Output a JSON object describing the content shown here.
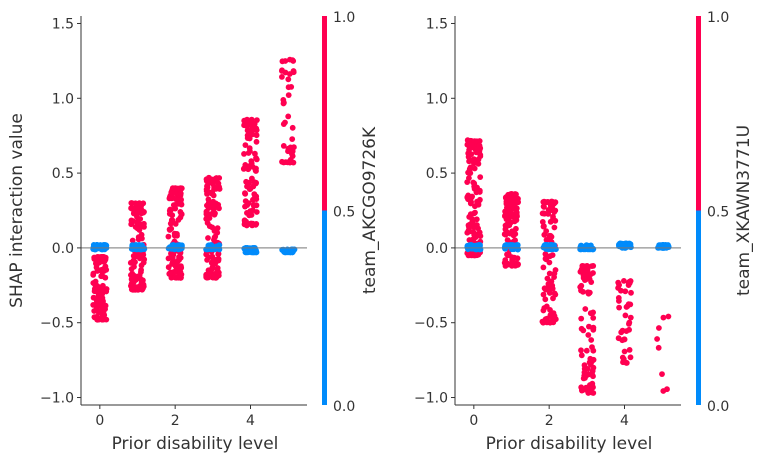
{
  "chart_data": [
    {
      "type": "scatter",
      "title": "",
      "xlabel": "Prior disability level",
      "ylabel": "SHAP interaction value",
      "xlim": [
        -0.5,
        5.5
      ],
      "ylim": [
        -1.05,
        1.55
      ],
      "x_ticks": [
        0,
        2,
        4
      ],
      "y_ticks": [
        -1.0,
        -0.5,
        0.0,
        0.5,
        1.0,
        1.5
      ],
      "y_tick_labels": [
        "−1.0",
        "−0.5",
        "0.0",
        "0.5",
        "1.0",
        "1.5"
      ],
      "grid": false,
      "colorbar": {
        "label": "team_AKCGO9726K",
        "low_label": "0.0",
        "mid_label": "0.5",
        "high_label": "1.0",
        "low_color": "#008bfb",
        "high_color": "#ff0051"
      },
      "series": [
        {
          "color_value": 1,
          "points": [
            {
              "x": 0,
              "y_range": [
                -0.48,
                -0.06
              ],
              "n": 130
            },
            {
              "x": 1,
              "y_range": [
                -0.28,
                0.3
              ],
              "n": 120
            },
            {
              "x": 2,
              "y_range": [
                -0.2,
                0.4
              ],
              "n": 120
            },
            {
              "x": 3,
              "y_range": [
                -0.2,
                0.47
              ],
              "n": 120
            },
            {
              "x": 4,
              "y_range": [
                0.15,
                0.86
              ],
              "n": 95
            },
            {
              "x": 5,
              "y_range": [
                0.57,
                1.26
              ],
              "n": 40
            }
          ]
        },
        {
          "color_value": 0,
          "points": [
            {
              "x": 0,
              "y_range": [
                -0.01,
                0.02
              ],
              "n": 40
            },
            {
              "x": 1,
              "y_range": [
                -0.01,
                0.02
              ],
              "n": 35
            },
            {
              "x": 2,
              "y_range": [
                -0.01,
                0.02
              ],
              "n": 35
            },
            {
              "x": 3,
              "y_range": [
                -0.01,
                0.02
              ],
              "n": 30
            },
            {
              "x": 4,
              "y_range": [
                -0.03,
                0.0
              ],
              "n": 35
            },
            {
              "x": 5,
              "y_range": [
                -0.03,
                -0.01
              ],
              "n": 25
            }
          ]
        }
      ],
      "reference_line": 0
    },
    {
      "type": "scatter",
      "title": "",
      "xlabel": "Prior disability level",
      "ylabel": "",
      "xlim": [
        -0.5,
        5.5
      ],
      "ylim": [
        -1.05,
        1.55
      ],
      "x_ticks": [
        0,
        2,
        4
      ],
      "y_ticks": [
        -1.0,
        -0.5,
        0.0,
        0.5,
        1.0,
        1.5
      ],
      "y_tick_labels": [
        "−1.0",
        "−0.5",
        "0.0",
        "0.5",
        "1.0",
        "1.5"
      ],
      "grid": false,
      "colorbar": {
        "label": "team_XKAWN3771U",
        "low_label": "0.0",
        "mid_label": "0.5",
        "high_label": "1.0",
        "low_color": "#008bfb",
        "high_color": "#ff0051"
      },
      "series": [
        {
          "color_value": 1,
          "points": [
            {
              "x": 0,
              "y_range": [
                -0.05,
                0.72
              ],
              "n": 130
            },
            {
              "x": 1,
              "y_range": [
                -0.12,
                0.36
              ],
              "n": 110
            },
            {
              "x": 2,
              "y_range": [
                -0.5,
                0.31
              ],
              "n": 95
            },
            {
              "x": 3,
              "y_range": [
                -0.97,
                -0.12
              ],
              "n": 90
            },
            {
              "x": 4,
              "y_range": [
                -0.78,
                -0.22
              ],
              "n": 40
            },
            {
              "x": 5,
              "y_range": [
                -0.97,
                -0.45
              ],
              "n": 8
            }
          ]
        },
        {
          "color_value": 0,
          "points": [
            {
              "x": 0,
              "y_range": [
                -0.01,
                0.02
              ],
              "n": 40
            },
            {
              "x": 1,
              "y_range": [
                -0.01,
                0.02
              ],
              "n": 35
            },
            {
              "x": 2,
              "y_range": [
                -0.01,
                0.02
              ],
              "n": 35
            },
            {
              "x": 3,
              "y_range": [
                -0.01,
                0.02
              ],
              "n": 30
            },
            {
              "x": 4,
              "y_range": [
                0.0,
                0.03
              ],
              "n": 30
            },
            {
              "x": 5,
              "y_range": [
                0.0,
                0.02
              ],
              "n": 35
            }
          ]
        }
      ],
      "reference_line": 0
    }
  ]
}
